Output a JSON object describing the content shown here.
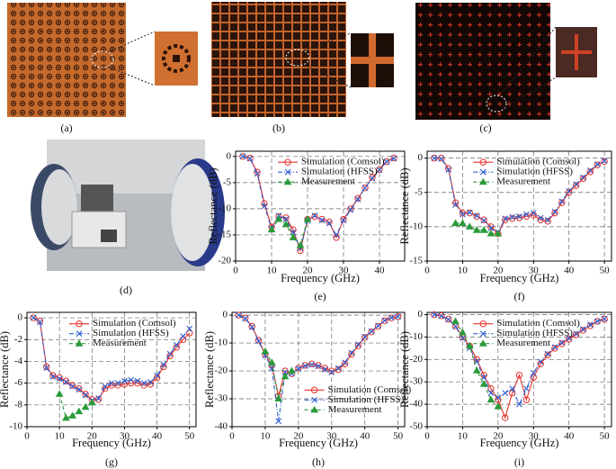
{
  "photo_labels": [
    "(a)",
    "(b)",
    "(c)",
    "(d)"
  ],
  "chart_data": [
    {
      "type": "line",
      "caption": "(e)",
      "x_label": "Frequency (GHz)",
      "y_label": "Reflectance (dB)",
      "x": [
        2,
        4,
        6,
        8,
        10,
        12,
        14,
        16,
        18,
        20,
        22,
        24,
        26,
        28,
        30,
        32,
        34,
        36,
        38,
        40,
        42,
        44
      ],
      "xlim": [
        0,
        47
      ],
      "xticks": [
        0,
        10,
        20,
        30,
        40
      ],
      "ylim": [
        -20,
        1
      ],
      "yticks": [
        0,
        -5,
        -10,
        -15,
        -20
      ],
      "grid": true,
      "legend": "upper center",
      "series": [
        {
          "name": "Simulation (Comsol)",
          "color": "#e8322a",
          "linestyle": "solid",
          "marker": "o",
          "values": [
            0,
            -0.3,
            -3,
            -9,
            -13.5,
            -11.5,
            -11.7,
            -14,
            -18,
            -12,
            -11.5,
            -12,
            -12.5,
            -15.5,
            -12,
            -10,
            -8,
            -6,
            -4,
            -2.5,
            -1,
            -0.3
          ]
        },
        {
          "name": "Simulation (HFSS)",
          "color": "#3060d0",
          "linestyle": "dashdot",
          "marker": "x",
          "values": [
            0,
            -0.4,
            -3.3,
            -9.5,
            -13.8,
            -11.3,
            -12,
            -14.5,
            -17.5,
            -12.3,
            -11.3,
            -12.2,
            -12.8,
            -15,
            -12.2,
            -10.2,
            -8.2,
            -6,
            -4.2,
            -2.6,
            -1,
            -0.4
          ]
        },
        {
          "name": "Measurement",
          "color": "#2a9a3a",
          "linestyle": "dashed",
          "marker": "^",
          "values": [
            null,
            null,
            null,
            null,
            -14,
            -12,
            -13,
            -15.5,
            -17,
            -12,
            null,
            null,
            null,
            null,
            null,
            null,
            null,
            null,
            null,
            null,
            null,
            null
          ]
        }
      ]
    },
    {
      "type": "line",
      "caption": "(f)",
      "x_label": "Frequency (GHz)",
      "y_label": "Reflectance (dB)",
      "x": [
        2,
        4,
        6,
        8,
        10,
        12,
        14,
        16,
        18,
        20,
        22,
        24,
        26,
        28,
        30,
        32,
        34,
        36,
        38,
        40,
        42,
        44,
        46,
        48,
        50
      ],
      "xlim": [
        0,
        52
      ],
      "xticks": [
        0,
        10,
        20,
        30,
        40,
        50
      ],
      "ylim": [
        -15,
        1
      ],
      "yticks": [
        0,
        -5,
        -10,
        -15
      ],
      "grid": true,
      "legend": "upper center",
      "series": [
        {
          "name": "Simulation (Comsol)",
          "color": "#e8322a",
          "linestyle": "solid",
          "marker": "o",
          "values": [
            0,
            0,
            -1.5,
            -6.5,
            -8,
            -8,
            -8.5,
            -9,
            -10,
            -11,
            -9,
            -8.8,
            -8.7,
            -8.5,
            -8.3,
            -9,
            -9.2,
            -8,
            -6.5,
            -5,
            -4,
            -3,
            -2,
            -1,
            -0.5
          ]
        },
        {
          "name": "Simulation (HFSS)",
          "color": "#3060d0",
          "linestyle": "dashdot",
          "marker": "x",
          "values": [
            0,
            -0.1,
            -1.7,
            -6.8,
            -8.2,
            -7.9,
            -8.4,
            -9.1,
            -10.2,
            -10.8,
            -8.8,
            -8.6,
            -8.5,
            -8.2,
            -8,
            -8.7,
            -9,
            -7.8,
            -6.3,
            -4.8,
            -3.8,
            -2.8,
            -1.8,
            -0.9,
            -0.4
          ]
        },
        {
          "name": "Measurement",
          "color": "#2a9a3a",
          "linestyle": "dashed",
          "marker": "^",
          "values": [
            null,
            null,
            null,
            -9.5,
            -9.5,
            -10,
            -10.5,
            -10.5,
            -11,
            -11,
            null,
            null,
            null,
            null,
            null,
            null,
            null,
            null,
            null,
            null,
            null,
            null,
            null,
            null,
            null
          ]
        }
      ]
    },
    {
      "type": "line",
      "caption": "(g)",
      "x_label": "Frequency (GHz)",
      "y_label": "Reflectance (dB)",
      "x": [
        2,
        4,
        6,
        8,
        10,
        12,
        14,
        16,
        18,
        20,
        22,
        24,
        26,
        28,
        30,
        32,
        34,
        36,
        38,
        40,
        42,
        44,
        46,
        48,
        50
      ],
      "xlim": [
        0,
        52
      ],
      "xticks": [
        0,
        10,
        20,
        30,
        40,
        50
      ],
      "ylim": [
        -10,
        0.5
      ],
      "yticks": [
        0,
        -2,
        -4,
        -6,
        -8,
        -10
      ],
      "grid": true,
      "legend": "upper center",
      "series": [
        {
          "name": "Simulation (Comsol)",
          "color": "#e8322a",
          "linestyle": "solid",
          "marker": "o",
          "values": [
            0,
            -0.3,
            -4.5,
            -5.3,
            -5.5,
            -5.8,
            -6.2,
            -6.5,
            -7,
            -7.5,
            -7.5,
            -6.5,
            -6.2,
            -6.2,
            -6.1,
            -6,
            -6,
            -6.2,
            -6.1,
            -5.5,
            -4.5,
            -3.5,
            -2.7,
            -2,
            -1.4
          ]
        },
        {
          "name": "Simulation (HFSS)",
          "color": "#3060d0",
          "linestyle": "dashdot",
          "marker": "x",
          "values": [
            0,
            -0.4,
            -4.6,
            -5.4,
            -5.6,
            -5.9,
            -6.3,
            -6.6,
            -7.1,
            -7.6,
            -7.4,
            -6.3,
            -6,
            -6,
            -5.8,
            -5.7,
            -5.8,
            -6,
            -5.9,
            -5.3,
            -4.3,
            -3.3,
            -2.5,
            -1.7,
            -1
          ]
        },
        {
          "name": "Measurement",
          "color": "#2a9a3a",
          "linestyle": "dashed",
          "marker": "^",
          "values": [
            null,
            null,
            null,
            null,
            -7,
            -9.2,
            -9,
            -8.6,
            -8.2,
            -7.8,
            null,
            null,
            null,
            null,
            null,
            null,
            null,
            null,
            null,
            null,
            null,
            null,
            null,
            null,
            null
          ]
        }
      ]
    },
    {
      "type": "line",
      "caption": "(h)",
      "x_label": "Frequency (GHz)",
      "y_label": "Reflectance (dB)",
      "x": [
        2,
        4,
        6,
        8,
        10,
        12,
        14,
        16,
        18,
        20,
        22,
        24,
        26,
        28,
        30,
        32,
        34,
        36,
        38,
        40,
        42,
        44,
        46,
        48,
        50
      ],
      "xlim": [
        0,
        52
      ],
      "xticks": [
        0,
        10,
        20,
        30,
        40,
        50
      ],
      "ylim": [
        -40,
        1
      ],
      "yticks": [
        0,
        -10,
        -20,
        -30,
        -40
      ],
      "grid": true,
      "legend": "lower right",
      "series": [
        {
          "name": "Simulation (Comsol)",
          "color": "#e8322a",
          "linestyle": "solid",
          "marker": "o",
          "values": [
            0,
            -1,
            -4,
            -9,
            -14,
            -18,
            -29,
            -20,
            -21,
            -19,
            -18,
            -17.5,
            -18,
            -19,
            -20,
            -19.5,
            -17.5,
            -14,
            -11,
            -8,
            -6,
            -4,
            -2,
            -1,
            -0.5
          ]
        },
        {
          "name": "Simulation (HFSS)",
          "color": "#3060d0",
          "linestyle": "dashdot",
          "marker": "x",
          "values": [
            0,
            -1.2,
            -4.3,
            -9.3,
            -14.5,
            -19,
            -38,
            -20.5,
            -21,
            -19.2,
            -18.2,
            -17.8,
            -18.3,
            -19.5,
            -20.5,
            -19,
            -17,
            -13.5,
            -10.5,
            -7.8,
            -5.8,
            -3.8,
            -1.9,
            -0.9,
            -0.5
          ]
        },
        {
          "name": "Measurement",
          "color": "#2a9a3a",
          "linestyle": "dashed",
          "marker": "^",
          "values": [
            null,
            null,
            null,
            null,
            -13,
            -17,
            -30,
            -22,
            -20,
            null,
            null,
            null,
            null,
            null,
            null,
            null,
            null,
            null,
            null,
            null,
            null,
            null,
            null,
            null,
            null
          ]
        }
      ]
    },
    {
      "type": "line",
      "caption": "(i)",
      "x_label": "Frequency (GHz)",
      "y_label": "Reflectance (dB)",
      "x": [
        2,
        4,
        6,
        8,
        10,
        12,
        14,
        16,
        18,
        20,
        22,
        24,
        26,
        28,
        30,
        32,
        34,
        36,
        38,
        40,
        42,
        44,
        46,
        48,
        50
      ],
      "xlim": [
        0,
        52
      ],
      "xticks": [
        0,
        10,
        20,
        30,
        40,
        50
      ],
      "ylim": [
        -50,
        1
      ],
      "yticks": [
        0,
        -10,
        -20,
        -30,
        -40,
        -50
      ],
      "grid": true,
      "legend": "upper center",
      "series": [
        {
          "name": "Simulation (Comsol)",
          "color": "#e8322a",
          "linestyle": "solid",
          "marker": "o",
          "values": [
            0,
            -0.5,
            -2,
            -5,
            -10,
            -14,
            -20,
            -27,
            -33,
            -38,
            -46,
            -35,
            -27,
            -38,
            -28,
            -22,
            -18,
            -15,
            -13,
            -11,
            -9,
            -7,
            -5,
            -3,
            -2
          ]
        },
        {
          "name": "Simulation (HFSS)",
          "color": "#3060d0",
          "linestyle": "dashdot",
          "marker": "x",
          "values": [
            0,
            -0.6,
            -2.2,
            -5.3,
            -10.5,
            -15,
            -21,
            -28,
            -35,
            -37,
            -35,
            -33,
            -40,
            -33,
            -26,
            -21,
            -17.5,
            -14.5,
            -12.5,
            -10.5,
            -8.5,
            -6.5,
            -4.5,
            -3,
            -1.8
          ]
        },
        {
          "name": "Measurement",
          "color": "#2a9a3a",
          "linestyle": "dashed",
          "marker": "^",
          "values": [
            null,
            null,
            null,
            -3,
            -8,
            -14,
            -25,
            -31,
            -38,
            -41,
            null,
            null,
            null,
            null,
            null,
            null,
            null,
            null,
            null,
            null,
            null,
            null,
            null,
            null,
            null
          ]
        }
      ]
    }
  ]
}
